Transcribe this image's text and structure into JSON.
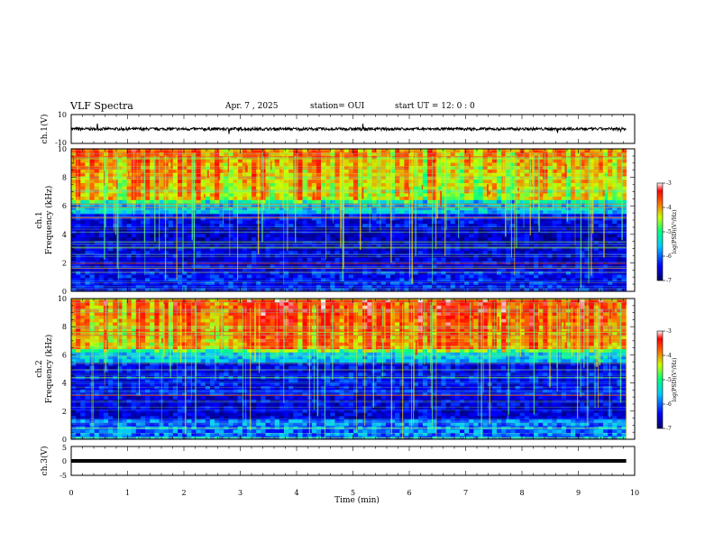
{
  "header": {
    "title": "VLF Spectra",
    "date": "Apr. 7 , 2025",
    "station": "station= OUI",
    "start": "start UT = 12: 0 : 0"
  },
  "chart_data": [
    {
      "type": "line",
      "name": "ch1-waveform",
      "ylabel": "ch.1(V)",
      "xlim": [
        0,
        10
      ],
      "ylim": [
        -10,
        10
      ],
      "yticks": [
        "10",
        "-10"
      ],
      "trace_level": 0,
      "trace_noise": 1.2
    },
    {
      "type": "heatmap",
      "name": "ch1-spectrogram",
      "ylabel": "ch.1\nFrequency (kHz)",
      "xlim": [
        0,
        9.85
      ],
      "ylim": [
        0,
        10
      ],
      "yticks": [
        "0",
        "2",
        "4",
        "6",
        "8",
        "10"
      ],
      "colorbar": {
        "label": "log(PSD)(V²/Hz)",
        "range": [
          -7,
          -3
        ],
        "ticks": [
          "-3",
          "-4",
          "-5",
          "-6",
          "-7"
        ]
      }
    },
    {
      "type": "heatmap",
      "name": "ch2-spectrogram",
      "ylabel": "ch.2\nFrequency (kHz)",
      "xlim": [
        0,
        9.85
      ],
      "ylim": [
        0,
        10
      ],
      "yticks": [
        "0",
        "2",
        "4",
        "6",
        "8",
        "10"
      ],
      "colorbar": {
        "label": "log(PSD)(V²/Hz)",
        "range": [
          -7,
          -3
        ],
        "ticks": [
          "-3",
          "-4",
          "-5",
          "-6",
          "-7"
        ]
      }
    },
    {
      "type": "line",
      "name": "ch3-waveform",
      "ylabel": "ch.3(V)",
      "xlim": [
        0,
        10
      ],
      "ylim": [
        -5,
        5
      ],
      "yticks": [
        "5",
        "0",
        "-5"
      ],
      "trace_level": 0
    }
  ],
  "xaxis": {
    "label": "Time (min)",
    "ticks": [
      "0",
      "1",
      "2",
      "3",
      "4",
      "5",
      "6",
      "7",
      "8",
      "9",
      "10"
    ]
  },
  "colors": {
    "colormap": [
      "#00007a",
      "#0000ff",
      "#00c8ff",
      "#00ff80",
      "#c8ff00",
      "#ff6400",
      "#ff0000",
      "#ffffff"
    ]
  }
}
